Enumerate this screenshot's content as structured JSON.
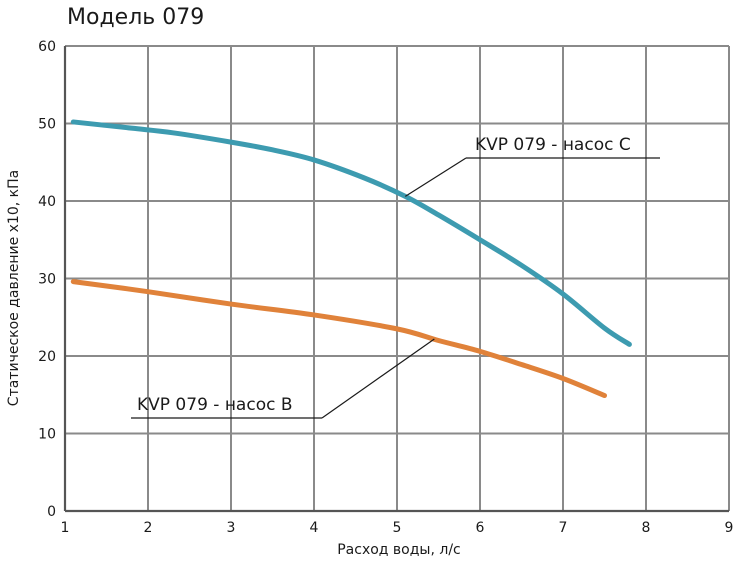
{
  "chart_data": {
    "type": "line",
    "title": "Модель 079",
    "xlabel": "Расход воды, л/с",
    "ylabel": "Статическое давление x10, кПа",
    "xlim": [
      1,
      9
    ],
    "ylim": [
      0,
      60
    ],
    "xticks": [
      1,
      2,
      3,
      4,
      5,
      6,
      7,
      8,
      9
    ],
    "yticks": [
      0,
      10,
      20,
      30,
      40,
      50,
      60
    ],
    "grid": true,
    "series": [
      {
        "name": "KVP 079 - насос C",
        "color": "#3d9bb0",
        "x": [
          1.1,
          1.8,
          2.3,
          3.0,
          3.5,
          4.0,
          4.6,
          5.1,
          5.5,
          6.0,
          6.5,
          7.0,
          7.5,
          7.8
        ],
        "y": [
          50.2,
          49.4,
          48.8,
          47.6,
          46.6,
          45.3,
          43.0,
          40.6,
          38.2,
          35.0,
          31.7,
          28.0,
          23.6,
          21.5
        ]
      },
      {
        "name": "KVP 079 - насос B",
        "color": "#e0823a",
        "x": [
          1.1,
          2.0,
          3.0,
          4.0,
          5.0,
          5.5,
          6.0,
          6.5,
          7.0,
          7.5
        ],
        "y": [
          29.6,
          28.3,
          26.7,
          25.3,
          23.5,
          22.0,
          20.6,
          18.9,
          17.1,
          14.9
        ]
      }
    ],
    "annotations": [
      {
        "text": "KVP 079 - насос C",
        "series": 0,
        "point": [
          5.1,
          40.6
        ]
      },
      {
        "text": "KVP 079 - насос B",
        "series": 1,
        "point": [
          5.45,
          22.2
        ]
      }
    ]
  }
}
